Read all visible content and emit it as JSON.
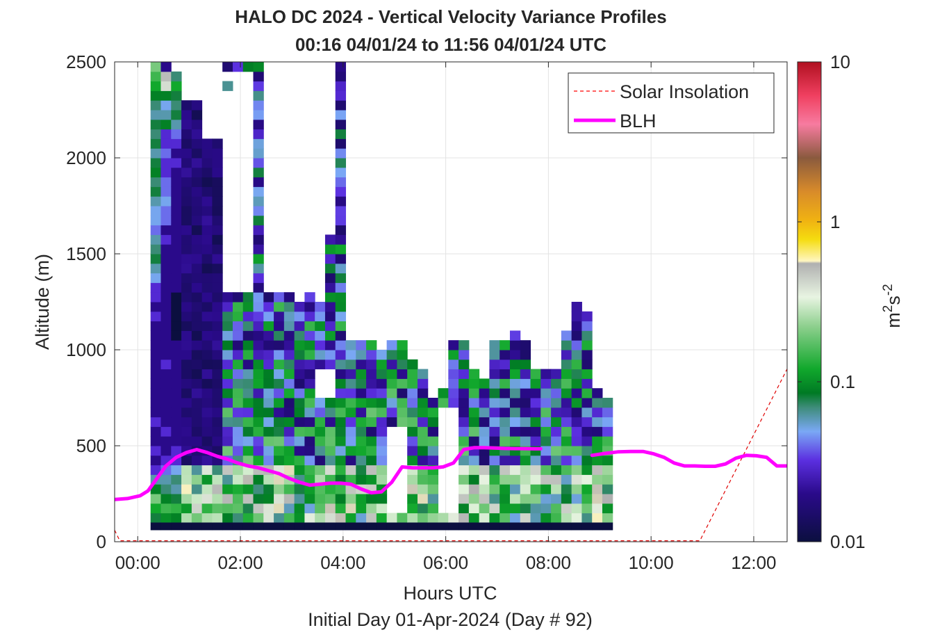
{
  "chart_data": {
    "type": "heatmap",
    "title": "HALO DC 2024 - Vertical Velocity Variance Profiles",
    "subtitle": "00:16 04/01/24 to 11:56 04/01/24  UTC",
    "xlabel": "Hours UTC",
    "xlabel2": "Initial Day 01-Apr-2024 (Day # 92)",
    "ylabel": "Altitude (m)",
    "xlim": [
      -0.45,
      12.65
    ],
    "ylim": [
      0,
      2500
    ],
    "x_ticks": [
      0,
      2,
      4,
      6,
      8,
      10,
      12
    ],
    "x_tick_labels": [
      "00:00",
      "02:00",
      "04:00",
      "06:00",
      "08:00",
      "10:00",
      "12:00"
    ],
    "y_ticks": [
      0,
      500,
      1000,
      1500,
      2000,
      2500
    ],
    "y_tick_labels": [
      "0",
      "500",
      "1000",
      "1500",
      "2000",
      "2500"
    ],
    "grid": true,
    "colorbar": {
      "label": "m^2s^-2",
      "label_base": "m",
      "label_exp1": "2",
      "label_mid": "s",
      "label_exp2": "-2",
      "scale": "log",
      "range": [
        0.01,
        10
      ],
      "ticks": [
        0.01,
        0.1,
        1,
        10
      ],
      "tick_labels": [
        "0.01",
        "0.1",
        "1",
        "10"
      ]
    },
    "legend": {
      "position": "top-right",
      "entries": [
        {
          "name": "Solar Insolation",
          "style": "dashed",
          "color": "#ff0000"
        },
        {
          "name": "BLH",
          "style": "solid",
          "color": "#ff00ff"
        }
      ]
    },
    "variance_grid": {
      "x_start_hours": 0.25,
      "x_step_hours": 0.2,
      "altitude_start_m": 100,
      "altitude_step_m": 50,
      "units": "m2s-2",
      "column_tops_m": [
        2500,
        2500,
        2450,
        2300,
        2300,
        2100,
        2100,
        1300,
        1300,
        1300,
        2500,
        1300,
        1300,
        1300,
        1250,
        1300,
        1250,
        2500,
        2500,
        1050,
        1050,
        1050,
        1000,
        1050,
        1050,
        950,
        900,
        750,
        800,
        1050,
        1050,
        900,
        850,
        1050,
        1050,
        1100,
        1050,
        900,
        900,
        900,
        1100,
        1250,
        1200,
        800,
        750
      ],
      "blank_bands": [
        [
          15,
          17,
          1600,
          2500
        ],
        [
          16,
          17,
          750,
          900
        ],
        [
          23,
          24,
          150,
          600
        ],
        [
          28,
          29,
          150,
          700
        ]
      ],
      "columns": [
        {
          "x": 0.35,
          "v": [
            0.08,
            0.12,
            0.2,
            0.09,
            0.06,
            0.03,
            0.02,
            0.03,
            0.02,
            0.02,
            0.03,
            0.02,
            0.02,
            0.02,
            0.02,
            0.02,
            0.02,
            0.02,
            0.02,
            0.02,
            0.02,
            0.03,
            0.02,
            0.03,
            0.03,
            0.05,
            0.06,
            0.08,
            0.07,
            0.06,
            0.04,
            0.05,
            0.05,
            0.06,
            0.08,
            0.07,
            0.09,
            0.08,
            0.06,
            0.08,
            0.07,
            0.08,
            0.06,
            0.07,
            0.09,
            0.12,
            0.15,
            0.2
          ]
        },
        {
          "x": 0.55,
          "v": [
            0.1,
            0.15,
            0.09,
            0.07,
            0.06,
            0.04,
            0.03,
            0.02,
            0.02,
            0.03,
            0.02,
            0.02,
            0.02,
            0.02,
            0.02,
            0.02,
            0.03,
            0.02,
            0.02,
            0.02,
            0.02,
            0.02,
            0.02,
            0.02,
            0.02,
            0.02,
            0.02,
            0.02,
            0.02,
            0.03,
            0.02,
            0.04,
            0.04,
            0.05,
            0.04,
            0.04,
            0.03,
            0.03,
            0.04,
            0.03,
            0.03,
            0.09,
            0.06,
            0.05,
            0.09,
            0.4,
            0.5,
            0.02
          ]
        },
        {
          "x": 0.75,
          "v": [
            0.09,
            0.14,
            0.08,
            0.06,
            0.07,
            0.05,
            0.03,
            0.03,
            0.02,
            0.02,
            0.02,
            0.02,
            0.02,
            0.02,
            0.02,
            0.02,
            0.02,
            0.02,
            0.02,
            0.01,
            0.01,
            0.01,
            0.01,
            0.01,
            0.02,
            0.02,
            0.02,
            0.02,
            0.02,
            0.02,
            0.02,
            0.02,
            0.02,
            0.02,
            0.02,
            0.02,
            0.02,
            0.03,
            0.02,
            0.03,
            0.04,
            0.06,
            0.08,
            0.07,
            0.08,
            0.12,
            0.07,
            0.12
          ]
        }
      ]
    },
    "blh_series": {
      "name": "BLH",
      "x": [
        -0.45,
        -0.2,
        0.05,
        0.2,
        0.55,
        0.75,
        0.95,
        1.15,
        1.35,
        1.55,
        1.75,
        1.95,
        2.15,
        2.35,
        2.55,
        2.75,
        2.95,
        3.15,
        3.35,
        3.55,
        3.75,
        3.95,
        4.15,
        4.35,
        4.55,
        4.75,
        4.95,
        5.15,
        5.35,
        5.55,
        5.75,
        5.95,
        6.15,
        6.35,
        6.55,
        6.75,
        6.95,
        7.15,
        7.35,
        7.55,
        7.75,
        7.85
      ],
      "y": [
        220,
        225,
        240,
        265,
        395,
        440,
        465,
        480,
        465,
        445,
        430,
        410,
        395,
        385,
        370,
        355,
        330,
        310,
        295,
        300,
        305,
        305,
        300,
        275,
        255,
        260,
        310,
        390,
        385,
        385,
        385,
        390,
        410,
        480,
        490,
        490,
        488,
        486,
        485,
        485,
        484,
        484
      ],
      "x2": [
        8.85,
        9.1,
        9.35,
        9.6,
        9.85,
        10.05,
        10.25,
        10.45,
        10.65,
        10.85,
        11.05,
        11.25,
        11.45,
        11.65,
        11.85,
        12.05,
        12.25,
        12.45,
        12.65
      ],
      "y2": [
        450,
        460,
        468,
        470,
        470,
        458,
        440,
        410,
        395,
        395,
        393,
        393,
        405,
        435,
        450,
        448,
        440,
        395,
        395
      ]
    },
    "solar_series": {
      "name": "Solar Insolation",
      "x": [
        -0.45,
        -0.35,
        10.95,
        12.65
      ],
      "y": [
        60,
        5,
        5,
        900
      ]
    }
  }
}
